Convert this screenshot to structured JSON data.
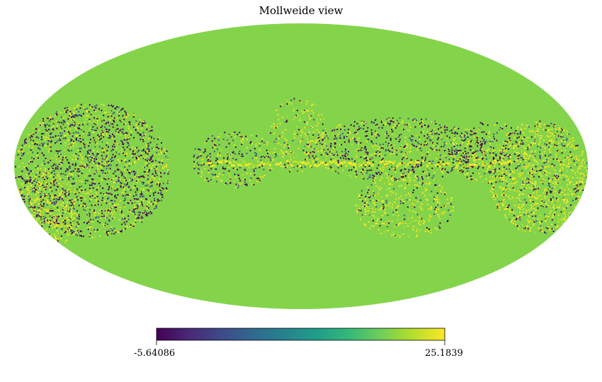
{
  "title": "Mollweide view",
  "colorbar": {
    "min_label": "-5.64086",
    "max_label": "25.1839",
    "colormap": "viridis",
    "stops": [
      "#440154",
      "#482878",
      "#3e4989",
      "#31688e",
      "#26828e",
      "#1f9e89",
      "#35b779",
      "#6ece58",
      "#b5de2b",
      "#fde725"
    ]
  },
  "map": {
    "projection": "mollweide",
    "background_color": "#84d44b",
    "colors": {
      "low": "#440154",
      "mid_dark": "#3b528b",
      "high": "#fde725",
      "yellow_green": "#c2df23"
    }
  }
}
